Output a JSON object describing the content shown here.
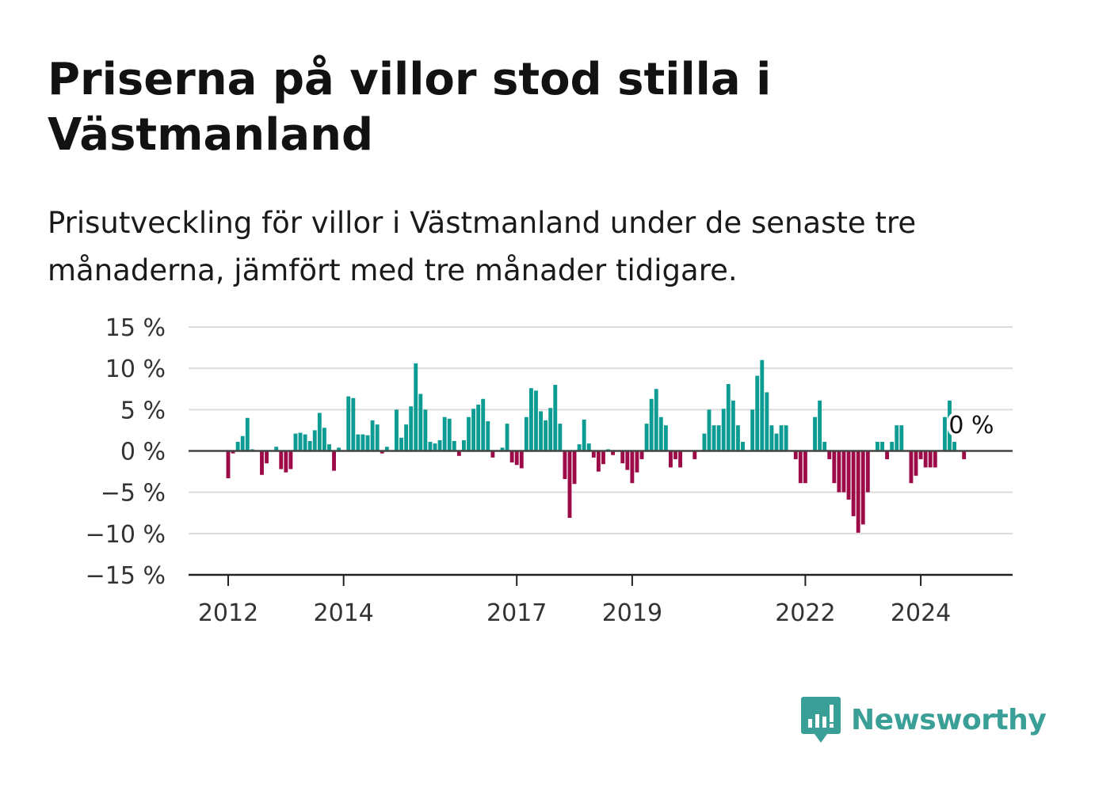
{
  "title": "Priserna på villor stod stilla i Västmanland",
  "subtitle": "Prisutveckling för villor i Västmanland under de senaste tre månaderna, jämfört med tre månader tidigare.",
  "brand": {
    "name": "Newsworthy",
    "color": "#3a9f96"
  },
  "chart_data": {
    "type": "bar",
    "x_start_year": 2012,
    "x_start_month": 1,
    "x_ticks": [
      "2012",
      "2014",
      "2017",
      "2019",
      "2022",
      "2024"
    ],
    "y_ticks": [
      "15 %",
      "10 %",
      "5 %",
      "0 %",
      "−5 %",
      "−10 %",
      "−15 %"
    ],
    "ylim": [
      -15,
      15
    ],
    "positive_color": "#0d9c93",
    "negative_color": "#9c0a47",
    "annotation": "0 %",
    "grid": true,
    "values": [
      -3.3,
      -0.3,
      1.1,
      1.8,
      4.0,
      0.2,
      0,
      -2.9,
      -1.5,
      0,
      0.5,
      -2.2,
      -2.6,
      -2.2,
      2.1,
      2.2,
      2.0,
      1.2,
      2.5,
      4.6,
      2.8,
      0.8,
      -2.4,
      0.4,
      0,
      6.6,
      6.4,
      2.0,
      2.0,
      1.9,
      3.7,
      3.2,
      -0.3,
      0.5,
      0,
      5.0,
      1.6,
      3.2,
      5.4,
      10.6,
      6.9,
      5.0,
      1.1,
      0.9,
      1.3,
      4.1,
      3.9,
      1.2,
      -0.6,
      1.3,
      4.1,
      5.1,
      5.6,
      6.3,
      3.6,
      -0.8,
      0,
      0.4,
      3.3,
      -1.4,
      -1.7,
      -2.1,
      4.1,
      7.6,
      7.3,
      4.8,
      3.7,
      5.2,
      8.0,
      3.3,
      -3.4,
      -8.1,
      -4.0,
      0.8,
      3.8,
      0.9,
      -0.8,
      -2.5,
      -1.6,
      0.2,
      -0.5,
      0,
      -1.5,
      -2.3,
      -3.9,
      -2.6,
      -1.0,
      3.3,
      6.3,
      7.5,
      4.1,
      3.1,
      -2.0,
      -1.0,
      -2.0,
      0,
      0,
      -1.0,
      0,
      2.1,
      5.0,
      3.1,
      3.1,
      5.1,
      8.1,
      6.1,
      3.1,
      1.1,
      0,
      5.0,
      9.1,
      11.0,
      7.1,
      3.1,
      2.1,
      3.1,
      3.1,
      0,
      -1.0,
      -3.9,
      -3.9,
      0,
      4.1,
      6.1,
      1.1,
      -1.0,
      -3.9,
      -5.0,
      -5.0,
      -5.9,
      -7.9,
      -9.9,
      -8.9,
      -5.0,
      0,
      1.1,
      1.1,
      -1.0,
      1.1,
      3.1,
      3.1,
      0,
      -3.9,
      -3.0,
      -1.0,
      -2.0,
      -2.0,
      -2.0,
      0,
      4.1,
      6.1,
      1.1,
      0,
      -1.0
    ]
  }
}
